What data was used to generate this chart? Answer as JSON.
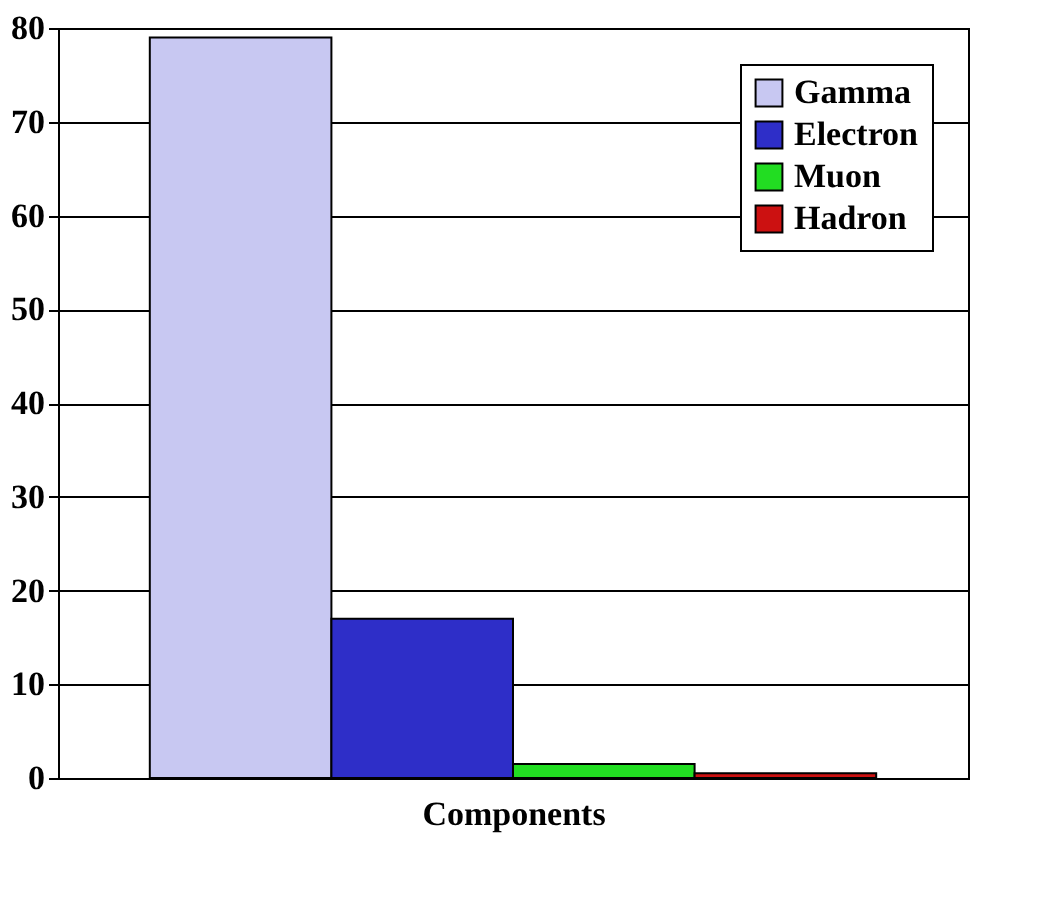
{
  "chart_data": {
    "type": "bar",
    "xlabel": "Components",
    "categories": [
      null
    ],
    "series": [
      {
        "name": "Gamma",
        "color": "#c8c8f2",
        "values": [
          79
        ]
      },
      {
        "name": "Electron",
        "color": "#2e2ec8",
        "values": [
          17
        ]
      },
      {
        "name": "Muon",
        "color": "#22dd22",
        "values": [
          1.5
        ]
      },
      {
        "name": "Hadron",
        "color": "#cc1111",
        "values": [
          0.5
        ]
      }
    ],
    "ylim": [
      0,
      80
    ],
    "yticks": [
      0,
      10,
      20,
      30,
      40,
      50,
      60,
      70,
      80
    ],
    "grid": "y",
    "legend": "top right"
  }
}
